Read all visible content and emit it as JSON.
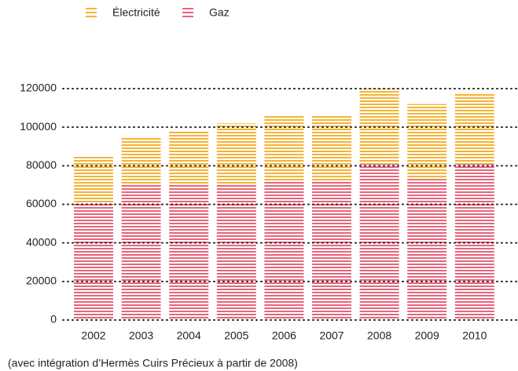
{
  "chart_data": {
    "type": "stacked_bar",
    "categories": [
      "2002",
      "2003",
      "2004",
      "2005",
      "2006",
      "2007",
      "2008",
      "2009",
      "2010"
    ],
    "series": [
      {
        "name": "Gaz",
        "color": "#e8657a",
        "values": [
          61000,
          70000,
          70000,
          70000,
          72000,
          72000,
          81000,
          73000,
          81000
        ]
      },
      {
        "name": "Électricité",
        "color": "#f5b335",
        "values": [
          24000,
          25000,
          28000,
          32000,
          34000,
          34000,
          39000,
          39000,
          37000
        ]
      }
    ],
    "ylim": [
      0,
      120000
    ],
    "yticks": [
      0,
      20000,
      40000,
      60000,
      80000,
      100000,
      120000
    ],
    "grid": true,
    "note": "(avec intégration d’Hermès Cuirs Précieux à partir de 2008)"
  }
}
